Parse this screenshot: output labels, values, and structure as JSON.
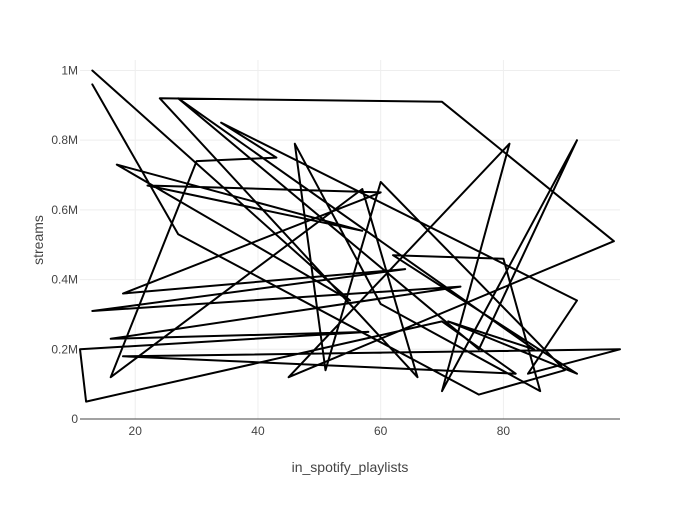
{
  "chart_data": {
    "type": "line",
    "title": "",
    "xlabel": "in_spotify_playlists",
    "ylabel": "streams",
    "xlim": [
      11,
      99
    ],
    "ylim": [
      0,
      1030000
    ],
    "grid": true,
    "legend": "none",
    "line_color": "#000000",
    "x_ticks": [
      {
        "value": 20,
        "label": "20"
      },
      {
        "value": 40,
        "label": "40"
      },
      {
        "value": 60,
        "label": "60"
      },
      {
        "value": 80,
        "label": "80"
      }
    ],
    "y_ticks": [
      {
        "value": 0,
        "label": "0"
      },
      {
        "value": 200000,
        "label": "0.2M"
      },
      {
        "value": 400000,
        "label": "0.4M"
      },
      {
        "value": 600000,
        "label": "0.6M"
      },
      {
        "value": 800000,
        "label": "0.8M"
      },
      {
        "value": 1000000,
        "label": "1M"
      }
    ],
    "series": [
      {
        "points": [
          [
            13,
            1000000
          ],
          [
            55,
            340000
          ],
          [
            17,
            730000
          ],
          [
            57,
            540000
          ],
          [
            22,
            670000
          ],
          [
            60,
            650000
          ],
          [
            18,
            360000
          ],
          [
            64,
            430000
          ],
          [
            13,
            310000
          ],
          [
            73,
            380000
          ],
          [
            16,
            230000
          ],
          [
            58,
            250000
          ],
          [
            11,
            200000
          ],
          [
            12,
            50000
          ],
          [
            70,
            280000
          ],
          [
            82,
            130000
          ],
          [
            18,
            180000
          ],
          [
            99,
            200000
          ],
          [
            84,
            130000
          ],
          [
            92,
            340000
          ],
          [
            34,
            850000
          ],
          [
            43,
            750000
          ],
          [
            30,
            740000
          ],
          [
            16,
            120000
          ],
          [
            57,
            660000
          ],
          [
            66,
            120000
          ],
          [
            24,
            920000
          ],
          [
            70,
            910000
          ],
          [
            98,
            510000
          ],
          [
            45,
            120000
          ],
          [
            81,
            790000
          ],
          [
            70,
            80000
          ],
          [
            92,
            800000
          ],
          [
            76,
            200000
          ],
          [
            27,
            920000
          ],
          [
            85,
            200000
          ],
          [
            71,
            280000
          ],
          [
            92,
            130000
          ],
          [
            62,
            470000
          ],
          [
            80,
            460000
          ],
          [
            86,
            80000
          ],
          [
            60,
            330000
          ],
          [
            46,
            790000
          ],
          [
            51,
            140000
          ],
          [
            60,
            680000
          ],
          [
            90,
            140000
          ],
          [
            76,
            70000
          ],
          [
            27,
            530000
          ],
          [
            13,
            960000
          ]
        ]
      }
    ]
  }
}
